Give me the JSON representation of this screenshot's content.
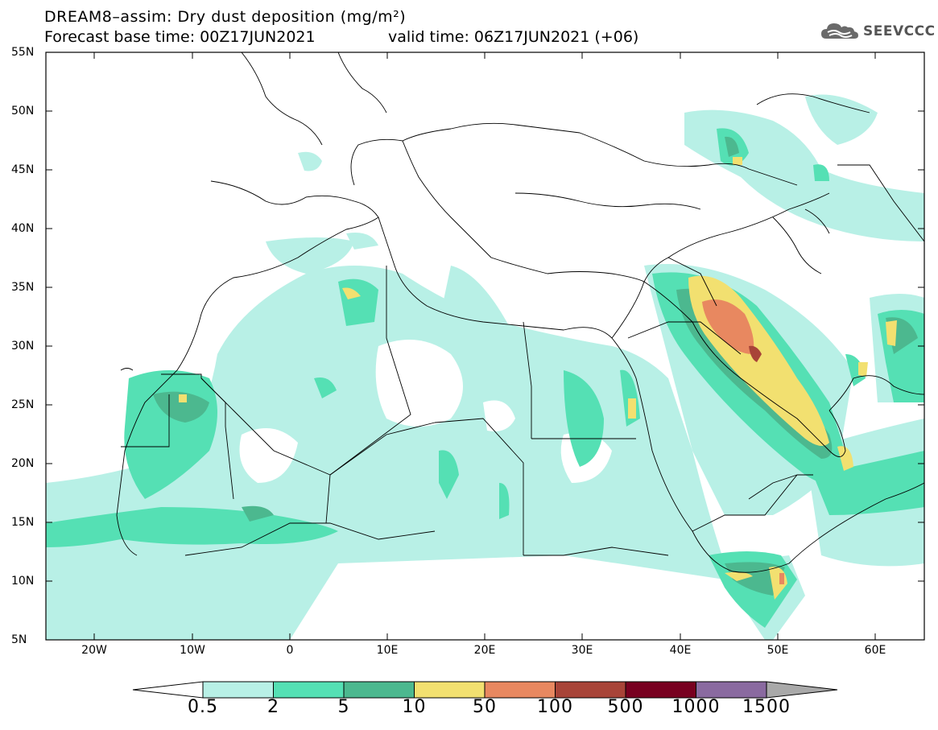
{
  "title": {
    "line1": "DREAM8–assim: Dry dust deposition (mg/m²)",
    "base_time": "Forecast base time: 00Z17JUN2021",
    "valid_time": "valid time: 06Z17JUN2021 (+06)"
  },
  "logo": {
    "text": "SEEVCCC",
    "icon": "cloud-logo-icon"
  },
  "axes": {
    "lat_labels": [
      "55N",
      "50N",
      "45N",
      "40N",
      "35N",
      "30N",
      "25N",
      "20N",
      "15N",
      "10N",
      "5N"
    ],
    "lon_labels": [
      "20W",
      "10W",
      "0",
      "10E",
      "20E",
      "30E",
      "40E",
      "50E",
      "60E"
    ]
  },
  "colorbar": {
    "labels": [
      "0.5",
      "2",
      "5",
      "10",
      "50",
      "100",
      "500",
      "1000",
      "1500"
    ],
    "colors": [
      "#b8f0e6",
      "#55e0b4",
      "#4cb88f",
      "#f2e070",
      "#e88860",
      "#a84438",
      "#780020",
      "#8a6aa0",
      "#a9a9a9"
    ]
  },
  "map_extent": {
    "lon": [
      -25,
      65
    ],
    "lat": [
      5,
      55
    ]
  }
}
